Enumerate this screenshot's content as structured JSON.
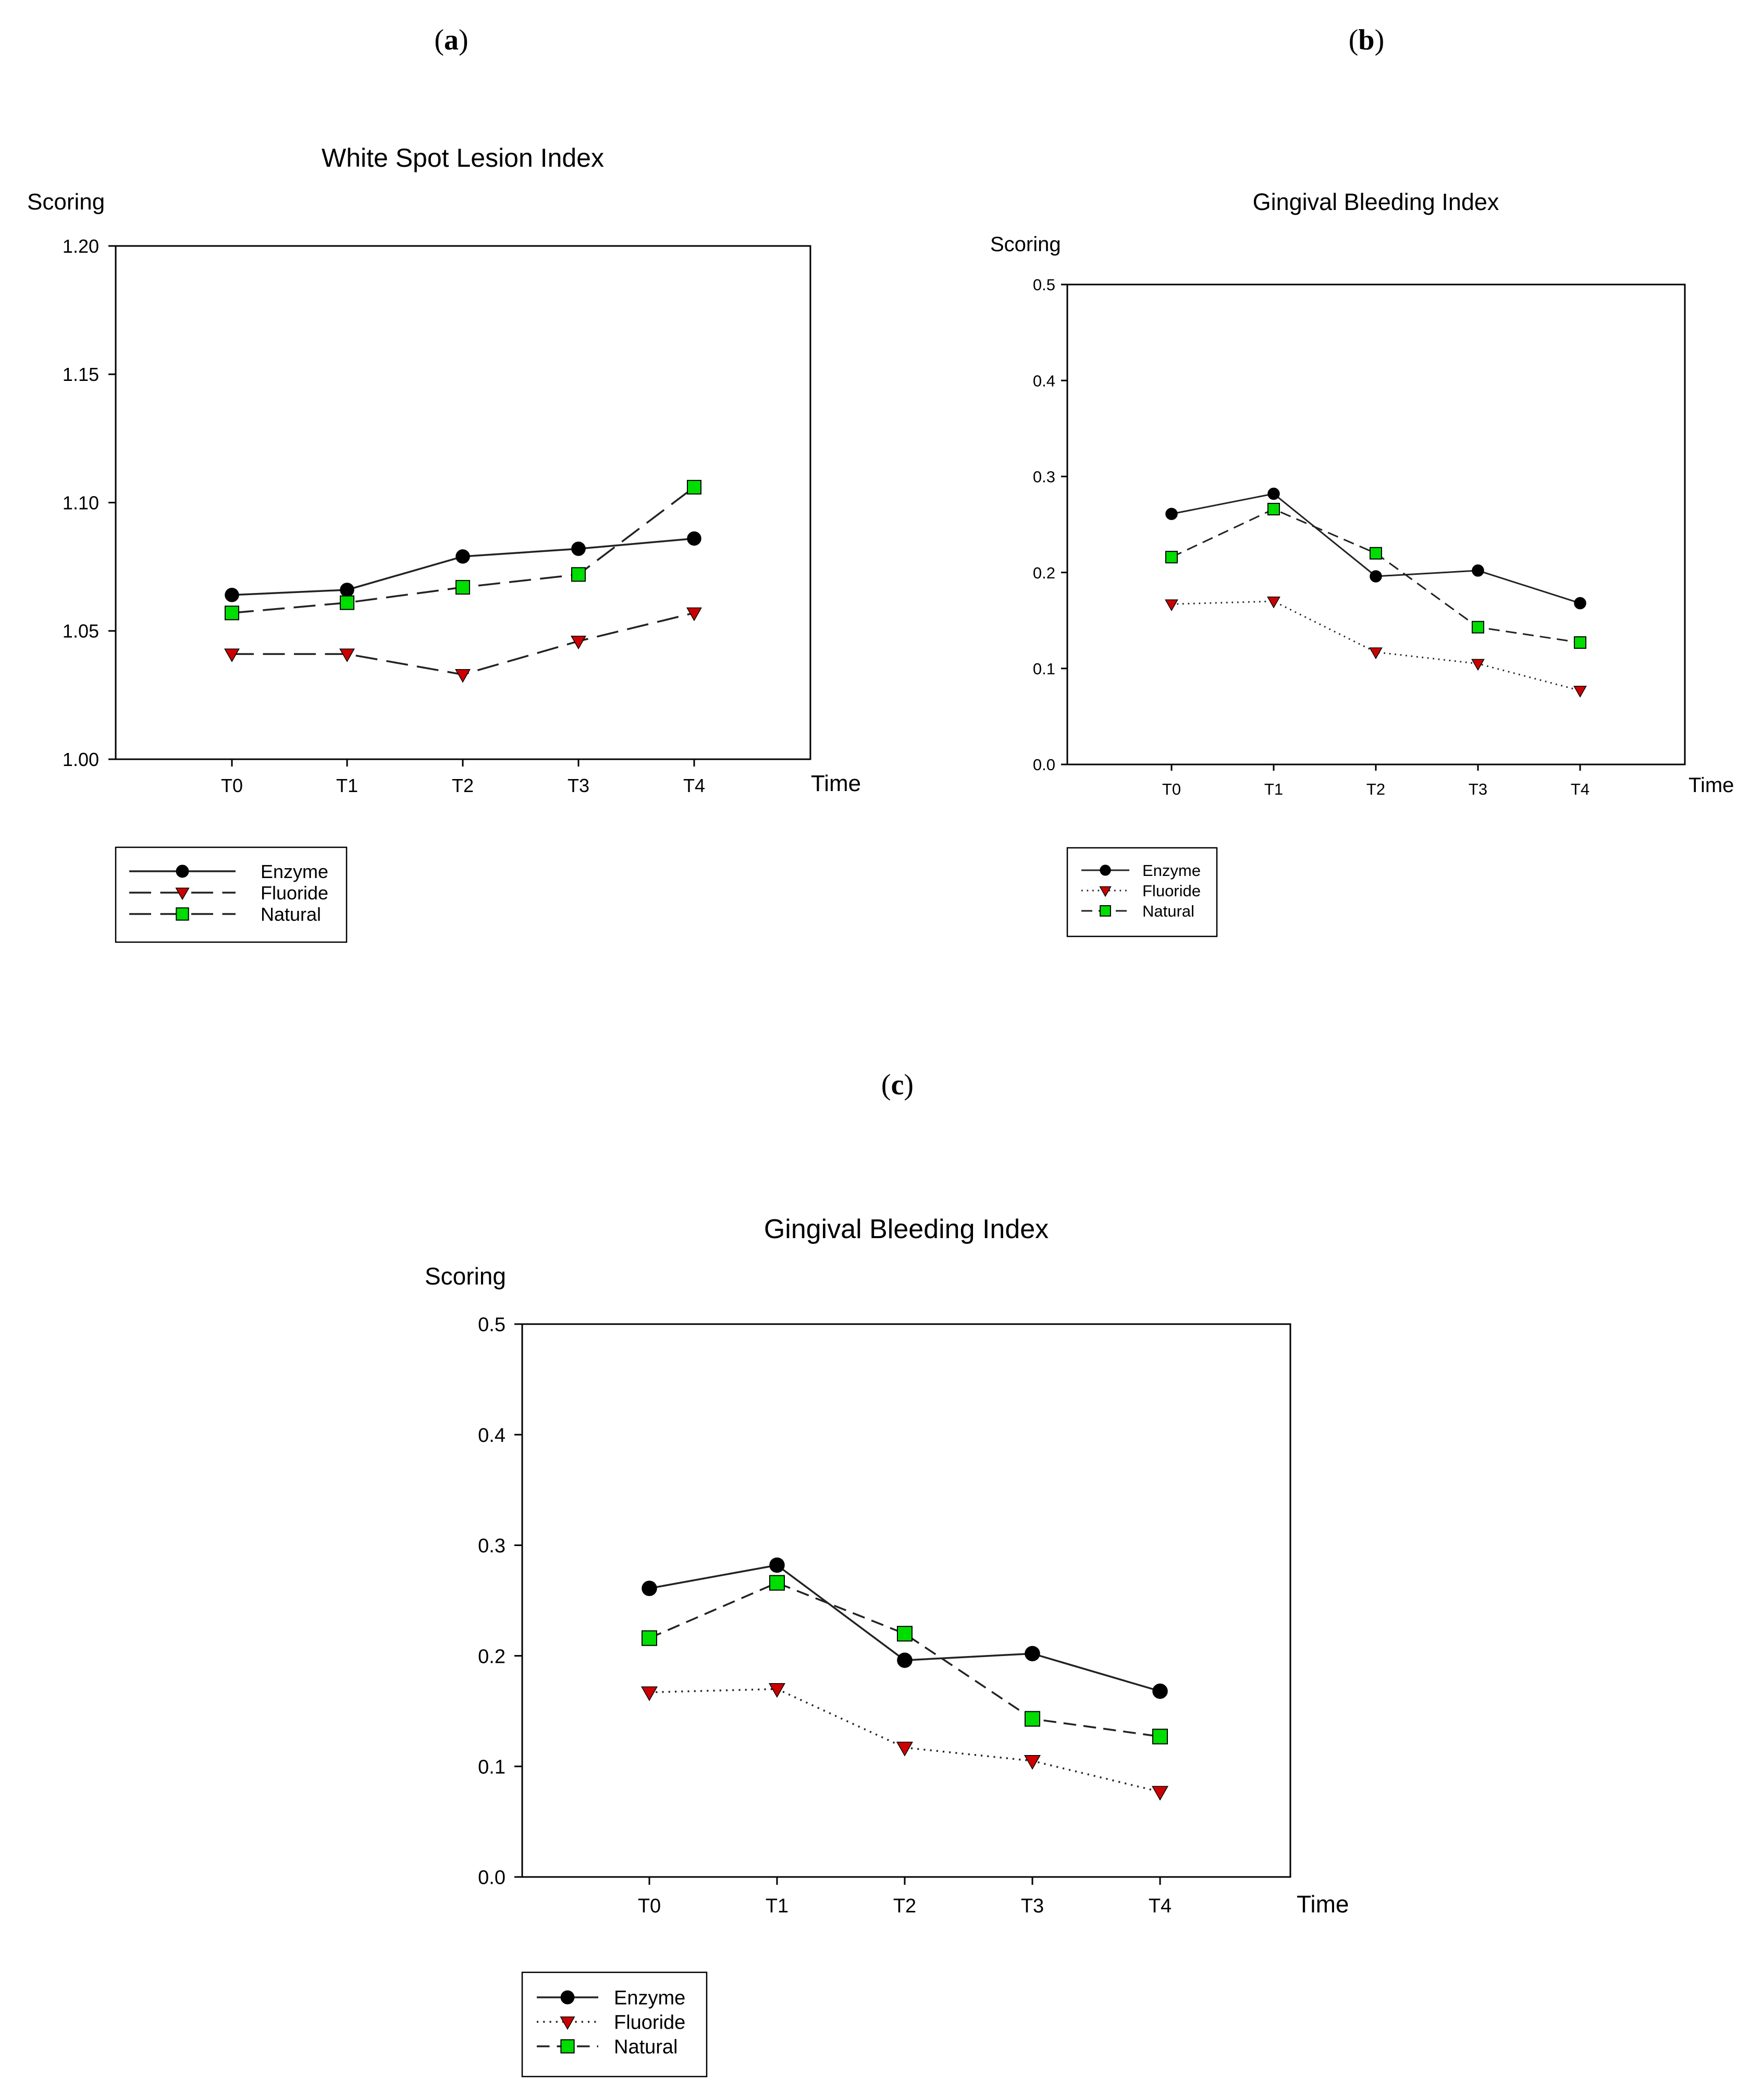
{
  "panels": [
    {
      "label": "a",
      "open": "(",
      "close": ")"
    },
    {
      "label": "b",
      "open": "(",
      "close": ")"
    },
    {
      "label": "c",
      "open": "(",
      "close": ")"
    }
  ],
  "colors": {
    "enzyme": "#000000",
    "fluoride": "#cc0000",
    "natural": "#00dd00",
    "line": "#222222"
  },
  "chart_data": [
    {
      "id": "a",
      "type": "line",
      "title": "White Spot Lesion Index",
      "ylabel": "Scoring",
      "xlabel": "Time",
      "categories": [
        "T0",
        "T1",
        "T2",
        "T3",
        "T4"
      ],
      "ylim": [
        1.0,
        1.2
      ],
      "yticks": [
        "1.00",
        "1.05",
        "1.10",
        "1.15",
        "1.20"
      ],
      "grid": false,
      "legend": "below-left",
      "series": [
        {
          "name": "Enzyme",
          "marker": "circle",
          "dash": "solid",
          "values": [
            1.064,
            1.066,
            1.079,
            1.082,
            1.086
          ]
        },
        {
          "name": "Fluoride",
          "marker": "triangle-down",
          "dash": "long-dash",
          "values": [
            1.041,
            1.041,
            1.033,
            1.046,
            1.057
          ]
        },
        {
          "name": "Natural",
          "marker": "square",
          "dash": "long-dash",
          "values": [
            1.057,
            1.061,
            1.067,
            1.072,
            1.106
          ]
        }
      ]
    },
    {
      "id": "b",
      "type": "line",
      "title": "Gingival Bleeding Index",
      "ylabel": "Scoring",
      "xlabel": "Time",
      "categories": [
        "T0",
        "T1",
        "T2",
        "T3",
        "T4"
      ],
      "ylim": [
        0.0,
        0.5
      ],
      "yticks": [
        "0.0",
        "0.1",
        "0.2",
        "0.3",
        "0.4",
        "0.5"
      ],
      "grid": false,
      "legend": "below-left",
      "series": [
        {
          "name": "Enzyme",
          "marker": "circle",
          "dash": "solid",
          "values": [
            0.261,
            0.282,
            0.196,
            0.202,
            0.168
          ]
        },
        {
          "name": "Fluoride",
          "marker": "triangle-down",
          "dash": "dotted",
          "values": [
            0.167,
            0.17,
            0.117,
            0.105,
            0.077
          ]
        },
        {
          "name": "Natural",
          "marker": "square",
          "dash": "dashed",
          "values": [
            0.216,
            0.266,
            0.22,
            0.143,
            0.127
          ]
        }
      ]
    },
    {
      "id": "c",
      "type": "line",
      "title": "Gingival Bleeding Index",
      "ylabel": "Scoring",
      "xlabel": "Time",
      "categories": [
        "T0",
        "T1",
        "T2",
        "T3",
        "T4"
      ],
      "ylim": [
        0.0,
        0.5
      ],
      "yticks": [
        "0.0",
        "0.1",
        "0.2",
        "0.3",
        "0.4",
        "0.5"
      ],
      "grid": false,
      "legend": "below-left",
      "series": [
        {
          "name": "Enzyme",
          "marker": "circle",
          "dash": "solid",
          "values": [
            0.261,
            0.282,
            0.196,
            0.202,
            0.168
          ]
        },
        {
          "name": "Fluoride",
          "marker": "triangle-down",
          "dash": "dotted",
          "values": [
            0.167,
            0.17,
            0.117,
            0.105,
            0.077
          ]
        },
        {
          "name": "Natural",
          "marker": "square",
          "dash": "dashed",
          "values": [
            0.216,
            0.266,
            0.22,
            0.143,
            0.127
          ]
        }
      ]
    }
  ]
}
